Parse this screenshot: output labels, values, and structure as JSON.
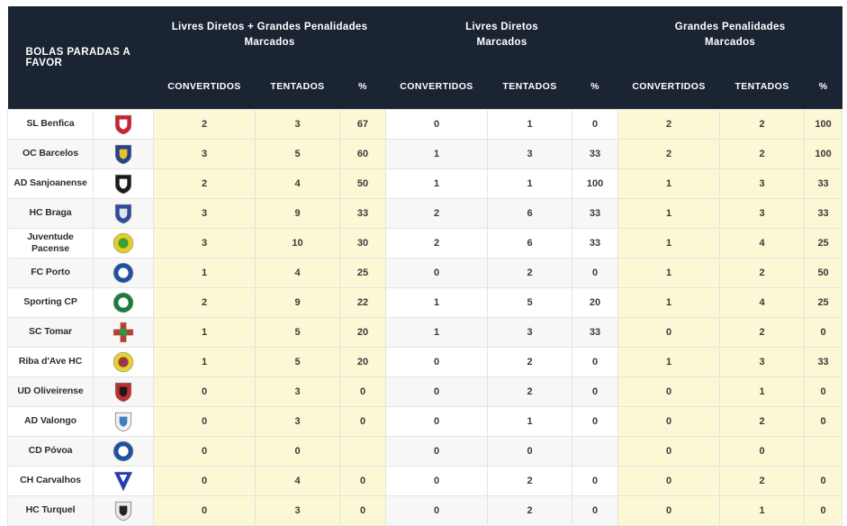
{
  "table": {
    "row_header": "BOLAS PARADAS A FAVOR",
    "groups": [
      {
        "line1": "Livres Diretos + Grandes Penalidades",
        "line2": "Marcados"
      },
      {
        "line1": "Livres Diretos",
        "line2": "Marcados"
      },
      {
        "line1": "Grandes Penalidades",
        "line2": "Marcados"
      }
    ],
    "sub_columns": [
      "CONVERTIDOS",
      "TENTADOS",
      "%"
    ],
    "colors": {
      "header_bg": "#1b2433",
      "header_text": "#ffffff",
      "highlight_cell_bg": "#fcf8d5",
      "row_alt_bg": "#f7f7f7",
      "border": "#e4e4e0",
      "cell_text": "#3a3a3a"
    }
  },
  "teams": [
    {
      "name": "SL Benfica",
      "badge": {
        "icon": "sl-benfica-crest",
        "shape": "shield",
        "primary": "#cf2031",
        "secondary": "#ffffff"
      },
      "values": [
        "2",
        "3",
        "67",
        "0",
        "1",
        "0",
        "2",
        "2",
        "100"
      ]
    },
    {
      "name": "OC Barcelos",
      "badge": {
        "icon": "oc-barcelos-crest",
        "shape": "shield",
        "primary": "#23418e",
        "secondary": "#e8c427"
      },
      "values": [
        "3",
        "5",
        "60",
        "1",
        "3",
        "33",
        "2",
        "2",
        "100"
      ]
    },
    {
      "name": "AD Sanjoanense",
      "badge": {
        "icon": "ad-sanjoanense-crest",
        "shape": "shield",
        "primary": "#1a1a1a",
        "secondary": "#ffffff"
      },
      "values": [
        "2",
        "4",
        "50",
        "1",
        "1",
        "100",
        "1",
        "3",
        "33"
      ]
    },
    {
      "name": "HC Braga",
      "badge": {
        "icon": "hc-braga-crest",
        "shape": "shield",
        "primary": "#2c4a9e",
        "secondary": "#dfe3ec"
      },
      "values": [
        "3",
        "9",
        "33",
        "2",
        "6",
        "33",
        "1",
        "3",
        "33"
      ]
    },
    {
      "name": "Juventude Pacense",
      "badge": {
        "icon": "juventude-pacense-crest",
        "shape": "circle",
        "primary": "#e3cf1d",
        "secondary": "#3f9e3a"
      },
      "values": [
        "3",
        "10",
        "30",
        "2",
        "6",
        "33",
        "1",
        "4",
        "25"
      ]
    },
    {
      "name": "FC Porto",
      "badge": {
        "icon": "fc-porto-crest",
        "shape": "circle",
        "primary": "#1f4fa0",
        "secondary": "#ffffff"
      },
      "values": [
        "1",
        "4",
        "25",
        "0",
        "2",
        "0",
        "1",
        "2",
        "50"
      ]
    },
    {
      "name": "Sporting CP",
      "badge": {
        "icon": "sporting-cp-crest",
        "shape": "circle",
        "primary": "#1d7a3f",
        "secondary": "#ffffff"
      },
      "values": [
        "2",
        "9",
        "22",
        "1",
        "5",
        "20",
        "1",
        "4",
        "25"
      ]
    },
    {
      "name": "SC Tomar",
      "badge": {
        "icon": "sc-tomar-crest",
        "shape": "cross",
        "primary": "#c23b2e",
        "secondary": "#3f8f3f"
      },
      "values": [
        "1",
        "5",
        "20",
        "1",
        "3",
        "33",
        "0",
        "2",
        "0"
      ]
    },
    {
      "name": "Riba d'Ave HC",
      "badge": {
        "icon": "riba-d-ave-hc-crest",
        "shape": "circle",
        "primary": "#e8d12c",
        "secondary": "#963a4a"
      },
      "values": [
        "1",
        "5",
        "20",
        "0",
        "2",
        "0",
        "1",
        "3",
        "33"
      ]
    },
    {
      "name": "UD Oliveirense",
      "badge": {
        "icon": "ud-oliveirense-crest",
        "shape": "shield",
        "primary": "#c22d2d",
        "secondary": "#1a1a1a"
      },
      "values": [
        "0",
        "3",
        "0",
        "0",
        "2",
        "0",
        "0",
        "1",
        "0"
      ]
    },
    {
      "name": "AD Valongo",
      "badge": {
        "icon": "ad-valongo-crest",
        "shape": "shield",
        "primary": "#f2f2f2",
        "secondary": "#3f7fc2"
      },
      "values": [
        "0",
        "3",
        "0",
        "0",
        "1",
        "0",
        "0",
        "2",
        "0"
      ]
    },
    {
      "name": "CD Póvoa",
      "badge": {
        "icon": "cd-povoa-crest",
        "shape": "circle",
        "primary": "#2050a0",
        "secondary": "#ffffff"
      },
      "values": [
        "0",
        "0",
        "",
        "0",
        "0",
        "",
        "0",
        "0",
        ""
      ]
    },
    {
      "name": "CH Carvalhos",
      "badge": {
        "icon": "ch-carvalhos-crest",
        "shape": "triangle",
        "primary": "#2038c2",
        "secondary": "#ffffff"
      },
      "values": [
        "0",
        "4",
        "0",
        "0",
        "2",
        "0",
        "0",
        "2",
        "0"
      ]
    },
    {
      "name": "HC Turquel",
      "badge": {
        "icon": "hc-turquel-crest",
        "shape": "shield",
        "primary": "#e8e8e8",
        "secondary": "#222222"
      },
      "values": [
        "0",
        "3",
        "0",
        "0",
        "2",
        "0",
        "0",
        "1",
        "0"
      ]
    }
  ]
}
